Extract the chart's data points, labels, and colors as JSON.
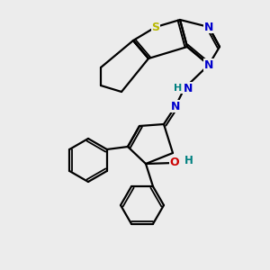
{
  "bg_color": "#ececec",
  "atom_colors": {
    "S": "#b8b800",
    "N": "#0000cc",
    "O": "#cc0000",
    "C": "#000000",
    "H_teal": "#008080"
  },
  "bond_color": "#000000",
  "figsize": [
    3.0,
    3.0
  ],
  "dpi": 100
}
